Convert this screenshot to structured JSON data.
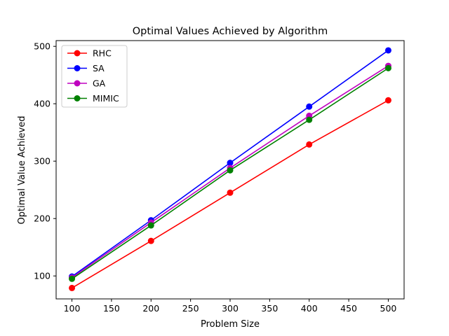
{
  "chart_data": {
    "type": "line",
    "title": "Optimal Values Achieved by Algorithm",
    "xlabel": "Problem Size",
    "ylabel": "Optimal Value Achieved",
    "x": [
      100,
      200,
      300,
      400,
      500
    ],
    "xlim": [
      80,
      520
    ],
    "ylim": [
      60,
      510
    ],
    "xticks": [
      100,
      150,
      200,
      250,
      300,
      350,
      400,
      450,
      500
    ],
    "yticks": [
      100,
      200,
      300,
      400,
      500
    ],
    "grid": false,
    "legend_position": "top-left",
    "series": [
      {
        "name": "RHC",
        "color": "#ff0000",
        "values": [
          79,
          161,
          245,
          329,
          406
        ]
      },
      {
        "name": "SA",
        "color": "#0000ff",
        "values": [
          99,
          197,
          297,
          395,
          493
        ]
      },
      {
        "name": "GA",
        "color": "#bf00bf",
        "values": [
          97,
          193,
          288,
          379,
          466
        ]
      },
      {
        "name": "MIMIC",
        "color": "#008000",
        "values": [
          95,
          188,
          284,
          372,
          462
        ]
      }
    ]
  }
}
